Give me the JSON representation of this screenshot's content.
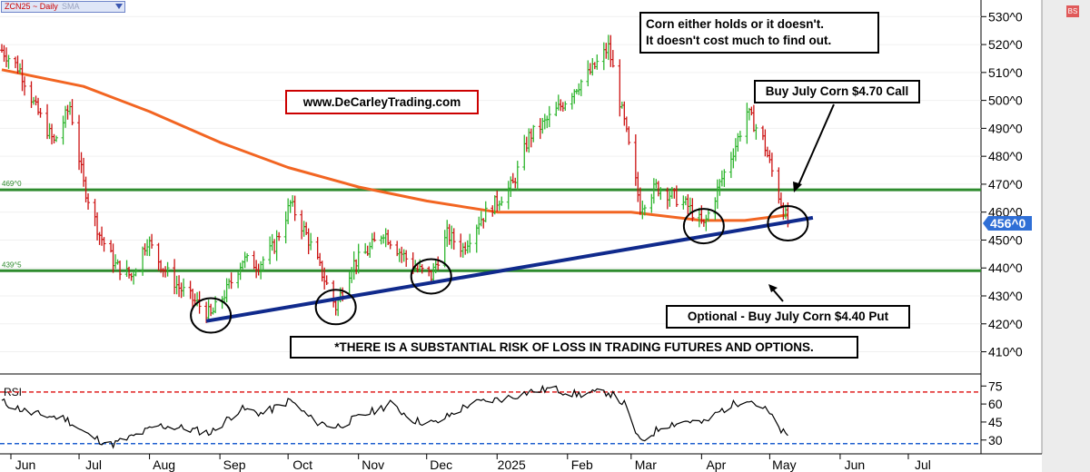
{
  "header": {
    "symbol_label": "ZCN25 ~ Daily",
    "study_label": "SMA",
    "dropdown_icon": "chevron-down-icon"
  },
  "annotations": {
    "website": "www.DeCarleyTrading.com",
    "note_line1": "Corn either holds or it doesn't.",
    "note_line2": "It doesn't cost much to find out.",
    "call_label": "Buy July Corn $4.70 Call",
    "put_label": "Optional - Buy July Corn $4.40 Put",
    "disclaimer": "*THERE IS A SUBSTANTIAL RISK OF LOSS IN TRADING FUTURES AND OPTIONS.",
    "corner_badge": "BS"
  },
  "colors": {
    "up_bar": "#2db52d",
    "down_bar": "#cc1111",
    "sma": "#f26522",
    "support_line": "#2e8b2e",
    "trend_line": "#102a8c",
    "rsi_line": "#000000",
    "rsi_upper": "#e02020",
    "rsi_lower": "#2060d0",
    "last_price_label": "#2f6fd6"
  },
  "chart_data": [
    {
      "type": "candlestick",
      "title": "ZCN25 ~ Daily",
      "x_tick_labels": [
        "Jun",
        "Jul",
        "Aug",
        "Sep",
        "Oct",
        "Nov",
        "Dec",
        "2025",
        "Feb",
        "Mar",
        "Apr",
        "May",
        "Jun",
        "Jul"
      ],
      "y_tick_labels": [
        "410^0",
        "420^0",
        "430^0",
        "440^0",
        "450^0",
        "460^0",
        "470^0",
        "480^0",
        "490^0",
        "500^0",
        "510^0",
        "520^0",
        "530^0"
      ],
      "ylim": [
        404,
        534
      ],
      "last_price_label": "456^0",
      "horizontal_lines": [
        {
          "label": "469^0",
          "value": 468
        },
        {
          "label": "439^5",
          "value": 439
        }
      ],
      "trendline": {
        "from": {
          "x": "Aug 26",
          "y": 421
        },
        "to": {
          "x": "May 20",
          "y": 458
        }
      },
      "price_path": [
        {
          "x": "May 28",
          "close": 518
        },
        {
          "x": "Jun 5",
          "close": 511
        },
        {
          "x": "Jun 12",
          "close": 497
        },
        {
          "x": "Jun 20",
          "close": 485
        },
        {
          "x": "Jun 27",
          "close": 498
        },
        {
          "x": "Jul 3",
          "close": 470
        },
        {
          "x": "Jul 10",
          "close": 452
        },
        {
          "x": "Jul 17",
          "close": 441
        },
        {
          "x": "Jul 24",
          "close": 437
        },
        {
          "x": "Jul 31",
          "close": 450
        },
        {
          "x": "Aug 7",
          "close": 440
        },
        {
          "x": "Aug 14",
          "close": 433
        },
        {
          "x": "Aug 21",
          "close": 428
        },
        {
          "x": "Aug 28",
          "close": 423
        },
        {
          "x": "Sep 4",
          "close": 432
        },
        {
          "x": "Sep 11",
          "close": 443
        },
        {
          "x": "Sep 18",
          "close": 441
        },
        {
          "x": "Sep 25",
          "close": 448
        },
        {
          "x": "Oct 2",
          "close": 463
        },
        {
          "x": "Oct 9",
          "close": 452
        },
        {
          "x": "Oct 16",
          "close": 438
        },
        {
          "x": "Oct 22",
          "close": 426
        },
        {
          "x": "Oct 29",
          "close": 441
        },
        {
          "x": "Nov 5",
          "close": 446
        },
        {
          "x": "Nov 12",
          "close": 453
        },
        {
          "x": "Nov 19",
          "close": 446
        },
        {
          "x": "Nov 26",
          "close": 440
        },
        {
          "x": "Dec 3",
          "close": 437
        },
        {
          "x": "Dec 10",
          "close": 452
        },
        {
          "x": "Dec 17",
          "close": 447
        },
        {
          "x": "Dec 24",
          "close": 457
        },
        {
          "x": "Dec 31",
          "close": 463
        },
        {
          "x": "Jan 8",
          "close": 470
        },
        {
          "x": "Jan 15",
          "close": 487
        },
        {
          "x": "Jan 22",
          "close": 492
        },
        {
          "x": "Jan 29",
          "close": 498
        },
        {
          "x": "Feb 5",
          "close": 505
        },
        {
          "x": "Feb 12",
          "close": 511
        },
        {
          "x": "Feb 19",
          "close": 519
        },
        {
          "x": "Feb 26",
          "close": 492
        },
        {
          "x": "Mar 5",
          "close": 462
        },
        {
          "x": "Mar 12",
          "close": 469
        },
        {
          "x": "Mar 19",
          "close": 466
        },
        {
          "x": "Mar 26",
          "close": 462
        },
        {
          "x": "Apr 2",
          "close": 455
        },
        {
          "x": "Apr 9",
          "close": 470
        },
        {
          "x": "Apr 16",
          "close": 484
        },
        {
          "x": "Apr 21",
          "close": 496
        },
        {
          "x": "Apr 28",
          "close": 486
        },
        {
          "x": "May 5",
          "close": 466
        },
        {
          "x": "May 9",
          "close": 456
        }
      ],
      "moving_average": [
        {
          "x": "May 28",
          "value": 511
        },
        {
          "x": "Jul 3",
          "value": 505
        },
        {
          "x": "Aug 1",
          "value": 496
        },
        {
          "x": "Sep 1",
          "value": 485
        },
        {
          "x": "Oct 1",
          "value": 476
        },
        {
          "x": "Nov 1",
          "value": 469
        },
        {
          "x": "Dec 1",
          "value": 464
        },
        {
          "x": "Jan 1",
          "value": 460
        },
        {
          "x": "Feb 1",
          "value": 460
        },
        {
          "x": "Mar 1",
          "value": 460
        },
        {
          "x": "Apr 1",
          "value": 457
        },
        {
          "x": "Apr 20",
          "value": 457
        },
        {
          "x": "May 9",
          "value": 459
        }
      ],
      "circled_lows": [
        "Aug 28",
        "Oct 22",
        "Dec 3",
        "Apr 2",
        "May 9"
      ]
    },
    {
      "type": "line",
      "title": "RSI",
      "y_tick_labels": [
        "30",
        "45",
        "60",
        "75"
      ],
      "ylim": [
        20,
        82
      ],
      "reference_lines": [
        {
          "value": 70,
          "style": "dashed"
        },
        {
          "value": 27,
          "style": "dashed"
        }
      ],
      "series": [
        {
          "name": "RSI",
          "values": [
            {
              "x": "May 28",
              "y": 62
            },
            {
              "x": "Jun 10",
              "y": 52
            },
            {
              "x": "Jun 25",
              "y": 48
            },
            {
              "x": "Jul 5",
              "y": 34
            },
            {
              "x": "Jul 15",
              "y": 26
            },
            {
              "x": "Jul 25",
              "y": 33
            },
            {
              "x": "Aug 5",
              "y": 42
            },
            {
              "x": "Aug 15",
              "y": 40
            },
            {
              "x": "Aug 28",
              "y": 36
            },
            {
              "x": "Sep 10",
              "y": 56
            },
            {
              "x": "Sep 20",
              "y": 52
            },
            {
              "x": "Oct 2",
              "y": 63
            },
            {
              "x": "Oct 12",
              "y": 46
            },
            {
              "x": "Oct 22",
              "y": 41
            },
            {
              "x": "Nov 5",
              "y": 52
            },
            {
              "x": "Nov 15",
              "y": 60
            },
            {
              "x": "Nov 26",
              "y": 46
            },
            {
              "x": "Dec 5",
              "y": 44
            },
            {
              "x": "Dec 20",
              "y": 60
            },
            {
              "x": "Jan 5",
              "y": 65
            },
            {
              "x": "Jan 15",
              "y": 70
            },
            {
              "x": "Jan 25",
              "y": 73
            },
            {
              "x": "Feb 5",
              "y": 68
            },
            {
              "x": "Feb 19",
              "y": 70
            },
            {
              "x": "Feb 26",
              "y": 60
            },
            {
              "x": "Mar 5",
              "y": 28
            },
            {
              "x": "Mar 15",
              "y": 42
            },
            {
              "x": "Mar 26",
              "y": 46
            },
            {
              "x": "Apr 2",
              "y": 44
            },
            {
              "x": "Apr 10",
              "y": 55
            },
            {
              "x": "Apr 21",
              "y": 65
            },
            {
              "x": "Apr 30",
              "y": 54
            },
            {
              "x": "May 5",
              "y": 40
            },
            {
              "x": "May 9",
              "y": 32
            }
          ]
        }
      ]
    }
  ]
}
